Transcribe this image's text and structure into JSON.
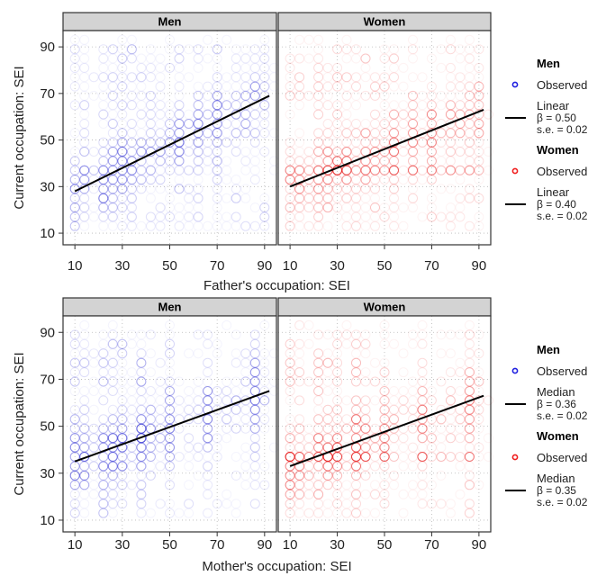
{
  "chart_data": [
    {
      "type": "scatter",
      "xlabel": "Father's occupation: SEI",
      "ylabel": "Current occupation: SEI",
      "xlim": [
        5,
        95
      ],
      "ylim": [
        5,
        97
      ],
      "xticks": [
        10,
        30,
        50,
        70,
        90
      ],
      "yticks": [
        10,
        30,
        50,
        70,
        90
      ],
      "grid": true,
      "legend_position": "right",
      "panels": [
        {
          "strip_label": "Men",
          "point_color": "#1f1fe0",
          "line_color": "#000000",
          "fit_line": {
            "x": [
              10,
              92
            ],
            "y": [
              28,
              69
            ]
          },
          "legend": {
            "header": "Men",
            "point_label": "Observed",
            "line_label_1": "Linear",
            "line_label_2": "β = 0.50",
            "line_label_3": "s.e. = 0.02"
          }
        },
        {
          "strip_label": "Women",
          "point_color": "#f01c1c",
          "line_color": "#000000",
          "fit_line": {
            "x": [
              10,
              92
            ],
            "y": [
              30,
              63
            ]
          },
          "legend": {
            "header": "Women",
            "point_label": "Observed",
            "line_label_1": "Linear",
            "line_label_2": "β = 0.40",
            "line_label_3": "s.e. = 0.02"
          }
        }
      ]
    },
    {
      "type": "scatter",
      "xlabel": "Mother's occupation: SEI",
      "ylabel": "Current occupation: SEI",
      "xlim": [
        5,
        95
      ],
      "ylim": [
        5,
        97
      ],
      "xticks": [
        10,
        30,
        50,
        70,
        90
      ],
      "yticks": [
        10,
        30,
        50,
        70,
        90
      ],
      "grid": true,
      "legend_position": "right",
      "panels": [
        {
          "strip_label": "Men",
          "point_color": "#1f1fe0",
          "line_color": "#000000",
          "fit_line": {
            "x": [
              10,
              92
            ],
            "y": [
              35,
              65
            ]
          },
          "legend": {
            "header": "Men",
            "point_label": "Observed",
            "line_label_1": "Median",
            "line_label_2": "β = 0.36",
            "line_label_3": "s.e. = 0.02"
          }
        },
        {
          "strip_label": "Women",
          "point_color": "#f01c1c",
          "line_color": "#000000",
          "fit_line": {
            "x": [
              10,
              92
            ],
            "y": [
              33,
              63
            ]
          },
          "legend": {
            "header": "Women",
            "point_label": "Observed",
            "line_label_1": "Median",
            "line_label_2": "β = 0.35",
            "line_label_3": "s.e. = 0.02"
          }
        }
      ]
    }
  ]
}
